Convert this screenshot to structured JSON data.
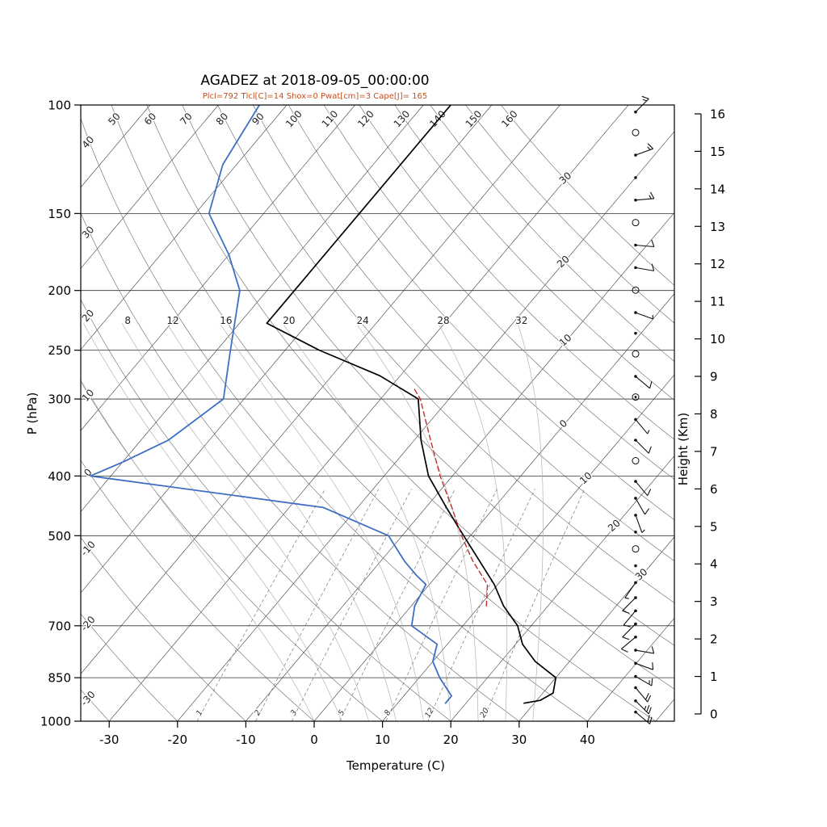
{
  "title": "AGADEZ at 2018-09-05_00:00:00",
  "params_line": "Plcl=792 Tlcl[C]=14 Shox=0 Pwat[cm]=3 Cape[J]= 165",
  "axes": {
    "x_label": "Temperature (C)",
    "y_left_label": "P (hPa)",
    "y_right_label": "Height (Km)"
  },
  "chart_data": {
    "type": "line",
    "chart_kind": "skew-t-log-p",
    "title": "AGADEZ at 2018-09-05_00:00:00",
    "parameters": {
      "Plcl": 792,
      "Tlcl_C": 14,
      "Shox": 0,
      "Pwat_cm": 3,
      "Cape_J": 165
    },
    "x_axis": {
      "label": "Temperature (C)",
      "ticks": [
        -30,
        -20,
        -10,
        0,
        10,
        20,
        30,
        40
      ]
    },
    "y_axis_left": {
      "label": "P (hPa)",
      "ticks": [
        100,
        150,
        200,
        250,
        300,
        400,
        500,
        700,
        850,
        1000
      ]
    },
    "y_axis_right": {
      "label": "Height (Km)",
      "ticks": [
        0,
        1,
        2,
        3,
        4,
        5,
        6,
        7,
        8,
        9,
        10,
        11,
        12,
        13,
        14,
        15,
        16
      ]
    },
    "series": [
      {
        "name": "temperature",
        "color": "#000000",
        "width": 1.7,
        "dash": "",
        "points": [
          [
            935,
            28.5
          ],
          [
            925,
            30.5
          ],
          [
            900,
            31.5
          ],
          [
            850,
            30.0
          ],
          [
            800,
            25.0
          ],
          [
            750,
            21.0
          ],
          [
            700,
            18.0
          ],
          [
            650,
            13.5
          ],
          [
            600,
            9.5
          ],
          [
            550,
            4.5
          ],
          [
            500,
            -1.0
          ],
          [
            450,
            -7.0
          ],
          [
            400,
            -13.5
          ],
          [
            350,
            -19.0
          ],
          [
            300,
            -24.5
          ],
          [
            275,
            -33.0
          ],
          [
            250,
            -45.0
          ],
          [
            226,
            -56.0
          ],
          [
            200,
            -56.0
          ],
          [
            150,
            -56.0
          ],
          [
            100,
            -56.0
          ]
        ]
      },
      {
        "name": "dewpoint",
        "color": "#3f6fc4",
        "width": 1.8,
        "dash": "",
        "points": [
          [
            935,
            17.0
          ],
          [
            910,
            17.0
          ],
          [
            850,
            13.0
          ],
          [
            800,
            10.0
          ],
          [
            750,
            8.5
          ],
          [
            700,
            2.5
          ],
          [
            650,
            0.5
          ],
          [
            600,
            -0.5
          ],
          [
            580,
            -3.0
          ],
          [
            550,
            -6.5
          ],
          [
            500,
            -12.0
          ],
          [
            450,
            -25.0
          ],
          [
            400,
            -63.0
          ],
          [
            380,
            -60.0
          ],
          [
            350,
            -56.0
          ],
          [
            300,
            -53.0
          ],
          [
            250,
            -58.0
          ],
          [
            200,
            -64.0
          ],
          [
            175,
            -70.0
          ],
          [
            150,
            -78.0
          ],
          [
            125,
            -82.0
          ],
          [
            100,
            -84.0
          ]
        ]
      },
      {
        "name": "parcel",
        "color": "#c03030",
        "width": 1.4,
        "dash": "6 4",
        "points": [
          [
            650,
            11.0
          ],
          [
            600,
            8.5
          ],
          [
            550,
            3.5
          ],
          [
            500,
            -1.3
          ],
          [
            450,
            -6.2
          ],
          [
            400,
            -11.8
          ],
          [
            350,
            -17.6
          ],
          [
            300,
            -24.2
          ],
          [
            288,
            -26.5
          ]
        ]
      }
    ],
    "grid": {
      "isotherms": {
        "min": -110,
        "max": 50,
        "step": 10
      },
      "dry_adiabats": {
        "min": -30,
        "max": 160,
        "step": 10
      },
      "moist_adiabats": [
        0,
        4,
        8,
        12,
        16,
        20,
        24,
        28,
        32
      ],
      "moist_labeled": [
        8,
        12,
        16,
        20,
        24,
        28,
        32
      ],
      "mixing_ratio": [
        1,
        2,
        3,
        5,
        8,
        12,
        20
      ],
      "isotherm_labels": [
        {
          "t": -30,
          "p": 131,
          "text": "30"
        },
        {
          "t": -20,
          "p": 179,
          "text": "20"
        },
        {
          "t": -10,
          "p": 240,
          "text": "10"
        },
        {
          "t": 0,
          "p": 328,
          "text": "0"
        },
        {
          "t": 10,
          "p": 402,
          "text": "10"
        },
        {
          "t": 20,
          "p": 480,
          "text": "20"
        },
        {
          "t": 30,
          "p": 576,
          "text": "30"
        }
      ]
    },
    "wind_barbs": [
      {
        "km": 0.05,
        "kt": 20,
        "dir": 130
      },
      {
        "km": 0.35,
        "kt": 25,
        "dir": 135
      },
      {
        "km": 0.7,
        "kt": 20,
        "dir": 140
      },
      {
        "km": 1.0,
        "kt": 15,
        "dir": 120
      },
      {
        "km": 1.35,
        "kt": 10,
        "dir": 110
      },
      {
        "km": 1.7,
        "kt": 10,
        "dir": 100
      },
      {
        "km": 2.05,
        "kt": 8,
        "dir": 230
      },
      {
        "km": 2.4,
        "kt": 10,
        "dir": 225
      },
      {
        "km": 2.75,
        "kt": 12,
        "dir": 220
      },
      {
        "km": 3.1,
        "kt": 10,
        "dir": 225
      },
      {
        "km": 3.5,
        "kt": 7,
        "dir": 215
      },
      {
        "km": 3.95,
        "kt": 3,
        "dir": 200
      },
      {
        "km": 4.4,
        "kt": 0,
        "dir": 0
      },
      {
        "km": 4.85,
        "kt": 3,
        "dir": 190
      },
      {
        "km": 5.3,
        "kt": 5,
        "dir": 160
      },
      {
        "km": 5.75,
        "kt": 8,
        "dir": 150
      },
      {
        "km": 6.2,
        "kt": 12,
        "dir": 140
      },
      {
        "km": 6.75,
        "kt": 0,
        "dir": 0
      },
      {
        "km": 7.3,
        "kt": 8,
        "dir": 135
      },
      {
        "km": 7.85,
        "kt": 5,
        "dir": 140
      },
      {
        "km": 8.45,
        "kt": 0,
        "dir": 0,
        "double": true
      },
      {
        "km": 9.0,
        "kt": 8,
        "dir": 130
      },
      {
        "km": 9.6,
        "kt": 0,
        "dir": 0
      },
      {
        "km": 10.15,
        "kt": 3,
        "dir": 120
      },
      {
        "km": 10.7,
        "kt": 6,
        "dir": 110
      },
      {
        "km": 11.3,
        "kt": 0,
        "dir": 0
      },
      {
        "km": 11.9,
        "kt": 8,
        "dir": 100
      },
      {
        "km": 12.5,
        "kt": 12,
        "dir": 95
      },
      {
        "km": 13.1,
        "kt": 0,
        "dir": 0
      },
      {
        "km": 13.7,
        "kt": 14,
        "dir": 85
      },
      {
        "km": 14.3,
        "kt": 3,
        "dir": 80
      },
      {
        "km": 14.9,
        "kt": 16,
        "dir": 70
      },
      {
        "km": 15.5,
        "kt": 0,
        "dir": 0
      },
      {
        "km": 16.05,
        "kt": 13,
        "dir": 45
      }
    ],
    "colors": {
      "temperature": "#000000",
      "dewpoint": "#3f6fc4",
      "parcel": "#c03030",
      "params_text": "#c3511d"
    }
  }
}
